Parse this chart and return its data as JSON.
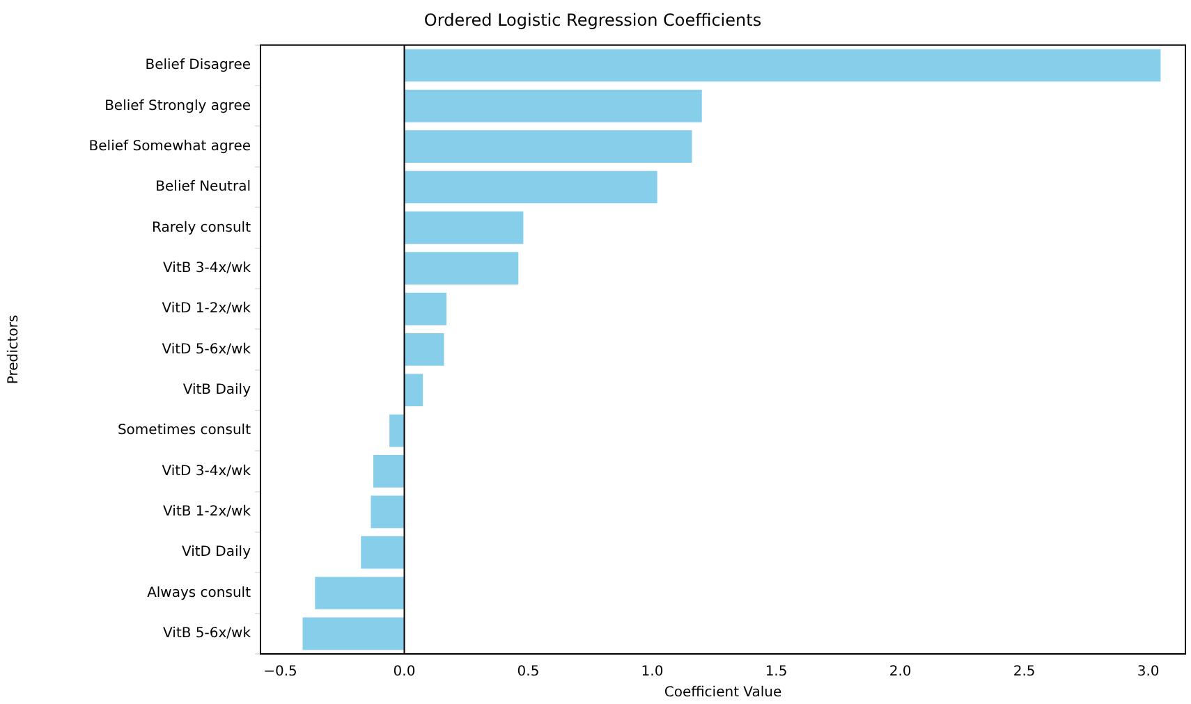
{
  "chart_data": {
    "type": "bar",
    "orientation": "horizontal",
    "title": "Ordered Logistic Regression Coefficients",
    "xlabel": "Coefficient Value",
    "ylabel": "Predictors",
    "categories": [
      "Belief Disagree",
      "Belief Strongly agree",
      "Belief Somewhat agree",
      "Belief Neutral",
      "Rarely consult",
      "VitB 3-4x/wk",
      "VitD 1-2x/wk",
      "VitD 5-6x/wk",
      "VitB Daily",
      "Sometimes consult",
      "VitD 3-4x/wk",
      "VitB 1-2x/wk",
      "VitD Daily",
      "Always consult",
      "VitB 5-6x/wk"
    ],
    "values": [
      3.05,
      1.2,
      1.16,
      1.02,
      0.48,
      0.46,
      0.17,
      0.16,
      0.075,
      -0.06,
      -0.125,
      -0.135,
      -0.175,
      -0.36,
      -0.41
    ],
    "color": "#87ceeb",
    "xlim": [
      -0.58,
      3.15
    ],
    "xticks": [
      {
        "value": -0.5,
        "label": "−0.5"
      },
      {
        "value": 0,
        "label": "0.0"
      },
      {
        "value": 0.5,
        "label": "0.5"
      },
      {
        "value": 1,
        "label": "1.0"
      },
      {
        "value": 1.5,
        "label": "1.5"
      },
      {
        "value": 2,
        "label": "2.0"
      },
      {
        "value": 2.5,
        "label": "2.5"
      },
      {
        "value": 3,
        "label": "3.0"
      }
    ],
    "ref_lines": [
      {
        "axis": "x",
        "value": 0,
        "color": "#000000"
      }
    ],
    "grid": false,
    "legend": false
  }
}
